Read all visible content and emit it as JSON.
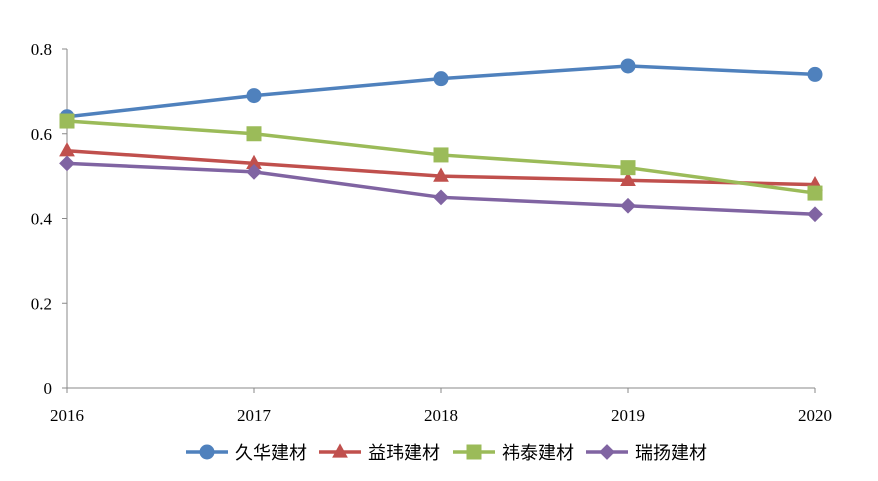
{
  "chart_data": {
    "type": "line",
    "title": "",
    "xlabel": "",
    "ylabel": "",
    "categories": [
      "2016",
      "2017",
      "2018",
      "2019",
      "2020"
    ],
    "ylim": [
      0,
      0.8
    ],
    "yticks": [
      "0",
      "0.2",
      "0.4",
      "0.6",
      "0.8"
    ],
    "ytick_values": [
      0,
      0.2,
      0.4,
      0.6,
      0.8
    ],
    "grid": false,
    "legend_position": "bottom",
    "series": [
      {
        "name": "久华建材",
        "marker": "circle",
        "color": "#4F81BD",
        "values": [
          0.64,
          0.69,
          0.73,
          0.76,
          0.74
        ]
      },
      {
        "name": "益玮建材",
        "marker": "triangle",
        "color": "#C0504D",
        "values": [
          0.56,
          0.53,
          0.5,
          0.49,
          0.48
        ]
      },
      {
        "name": "祎泰建材",
        "marker": "square",
        "color": "#9BBB59",
        "values": [
          0.63,
          0.6,
          0.55,
          0.52,
          0.46
        ]
      },
      {
        "name": "瑞扬建材",
        "marker": "diamond",
        "color": "#8064A2",
        "values": [
          0.53,
          0.51,
          0.45,
          0.43,
          0.41
        ]
      }
    ]
  }
}
